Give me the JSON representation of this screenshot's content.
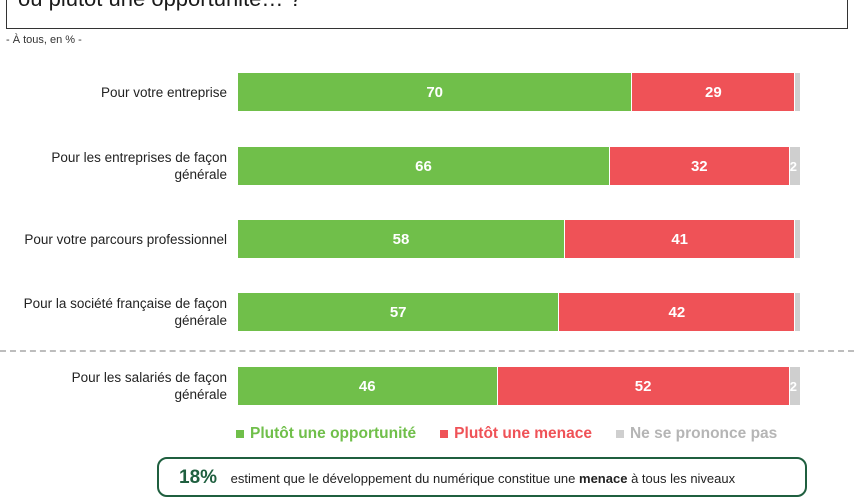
{
  "header": {
    "question": "ou plutôt une opportunité… ?",
    "base_note": "- À tous, en % -"
  },
  "chart_data": {
    "type": "bar",
    "orientation": "horizontal",
    "stacked": true,
    "scale": [
      0,
      100
    ],
    "categories": [
      "Pour votre entreprise",
      "Pour les entreprises de façon générale",
      "Pour votre parcours professionnel",
      "Pour la société française de façon générale",
      "Pour les salariés de façon générale"
    ],
    "series": [
      {
        "name": "Plutôt une opportunité",
        "color": "#70bf4a",
        "values": [
          70,
          66,
          58,
          57,
          46
        ]
      },
      {
        "name": "Plutôt une menace",
        "color": "#ef5257",
        "values": [
          29,
          32,
          41,
          42,
          52
        ]
      },
      {
        "name": "Ne se pronce pas",
        "color": "#cfcfcf",
        "values": [
          1,
          2,
          1,
          1,
          2
        ]
      }
    ],
    "data_labels": {
      "Plutôt une opportunité": [
        "70",
        "66",
        "58",
        "57",
        "46"
      ],
      "Plutôt une menace": [
        "29",
        "32",
        "41",
        "42",
        "52"
      ],
      "Ne se pronce pas": [
        "",
        "2",
        "",
        "",
        "2"
      ]
    },
    "legend_position": "bottom"
  },
  "legend": {
    "items": [
      {
        "label": "Plutôt une opportunité",
        "color": "#70bf4a"
      },
      {
        "label": "Plutôt une menace",
        "color": "#ef5257"
      },
      {
        "label": "Ne se prononce pas",
        "color": "#cfcfcf"
      }
    ]
  },
  "callout": {
    "percent": "18%",
    "text_before": "estiment que le développement du numérique constitue une",
    "emphasis": "menace",
    "text_after": "à tous les niveaux"
  }
}
